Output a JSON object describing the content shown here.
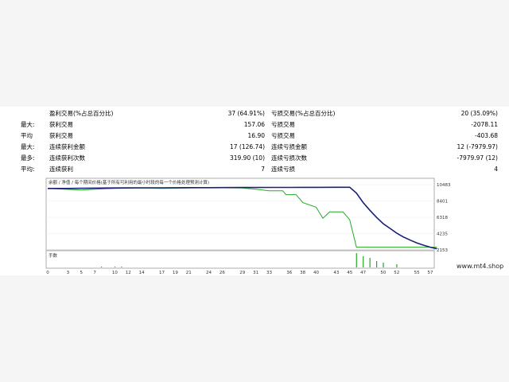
{
  "stats": [
    {
      "prefix": "",
      "left_label": "盈利交易(%占总百分比)",
      "left_value": "37 (64.91%)",
      "right_label": "亏损交易(%占总百分比)",
      "right_value": "20 (35.09%)"
    },
    {
      "prefix": "最大:",
      "left_label": "获利交易",
      "left_value": "157.06",
      "right_label": "亏损交易",
      "right_value": "-2078.11"
    },
    {
      "prefix": "平均",
      "left_label": "获利交易",
      "left_value": "16.90",
      "right_label": "亏损交易",
      "right_value": "-403.68"
    },
    {
      "prefix": "最大:",
      "left_label": "连续获利金额",
      "left_value": "17 (126.74)",
      "right_label": "连续亏损金额",
      "right_value": "12 (-7979.97)"
    },
    {
      "prefix": "最多:",
      "left_label": "连续获利次数",
      "left_value": "319.90 (10)",
      "right_label": "连续亏损次数",
      "right_value": "-7979.97 (12)"
    },
    {
      "prefix": "平均:",
      "left_label": "连续获利",
      "left_value": "7",
      "right_label": "连续亏损",
      "right_value": "4"
    }
  ],
  "chart": {
    "legend_text": "余额 / 净值 / 每个期间价格(基于所有可利用的最小时段的每一个价格处理预测计算)",
    "volume_label": "手数",
    "y_ticks": [
      "10483",
      "8401",
      "6318",
      "4235",
      "2153"
    ],
    "x_ticks": [
      "0",
      "3",
      "5",
      "7",
      "10",
      "12",
      "14",
      "17",
      "19",
      "21",
      "24",
      "26",
      "29",
      "31",
      "33",
      "36",
      "38",
      "40",
      "43",
      "45",
      "47",
      "50",
      "52",
      "55",
      "57"
    ],
    "balance_color": "#1a1f7a",
    "equity_color": "#22aa22",
    "volume_color": "#22aa22",
    "y_min": 2153,
    "y_max": 10483,
    "balance_points": [
      [
        0,
        10000
      ],
      [
        3,
        10000
      ],
      [
        5,
        10020
      ],
      [
        7,
        10040
      ],
      [
        10,
        10060
      ],
      [
        12,
        10070
      ],
      [
        14,
        10075
      ],
      [
        17,
        10080
      ],
      [
        19,
        10090
      ],
      [
        21,
        10095
      ],
      [
        24,
        10100
      ],
      [
        26,
        10110
      ],
      [
        29,
        10115
      ],
      [
        31,
        10120
      ],
      [
        33,
        10125
      ],
      [
        36,
        10130
      ],
      [
        38,
        10135
      ],
      [
        40,
        10140
      ],
      [
        43,
        10145
      ],
      [
        45,
        10150
      ],
      [
        46,
        9400
      ],
      [
        47,
        8200
      ],
      [
        48,
        7200
      ],
      [
        49,
        6300
      ],
      [
        50,
        5500
      ],
      [
        51,
        4900
      ],
      [
        52,
        4300
      ],
      [
        53,
        3800
      ],
      [
        54,
        3400
      ],
      [
        55,
        3050
      ],
      [
        56,
        2750
      ],
      [
        57,
        2500
      ],
      [
        58,
        2300
      ]
    ],
    "equity_points": [
      [
        0,
        10000
      ],
      [
        5,
        9800
      ],
      [
        7,
        9900
      ],
      [
        10,
        10000
      ],
      [
        14,
        10050
      ],
      [
        17,
        10000
      ],
      [
        24,
        10100
      ],
      [
        29,
        10050
      ],
      [
        31,
        9900
      ],
      [
        33,
        9700
      ],
      [
        35,
        9700
      ],
      [
        35.5,
        9200
      ],
      [
        37,
        9200
      ],
      [
        38,
        8200
      ],
      [
        40,
        7600
      ],
      [
        41,
        6200
      ],
      [
        42,
        7000
      ],
      [
        44,
        7000
      ],
      [
        45,
        6000
      ],
      [
        46,
        2500
      ],
      [
        58,
        2500
      ]
    ],
    "volume_bars": [
      [
        8,
        0.05
      ],
      [
        10,
        0.05
      ],
      [
        11,
        0.05
      ],
      [
        46,
        0.9
      ],
      [
        47,
        0.7
      ],
      [
        48,
        0.6
      ],
      [
        49,
        0.4
      ],
      [
        50,
        0.3
      ],
      [
        52,
        0.2
      ]
    ]
  },
  "watermark": "www.mt4.shop"
}
